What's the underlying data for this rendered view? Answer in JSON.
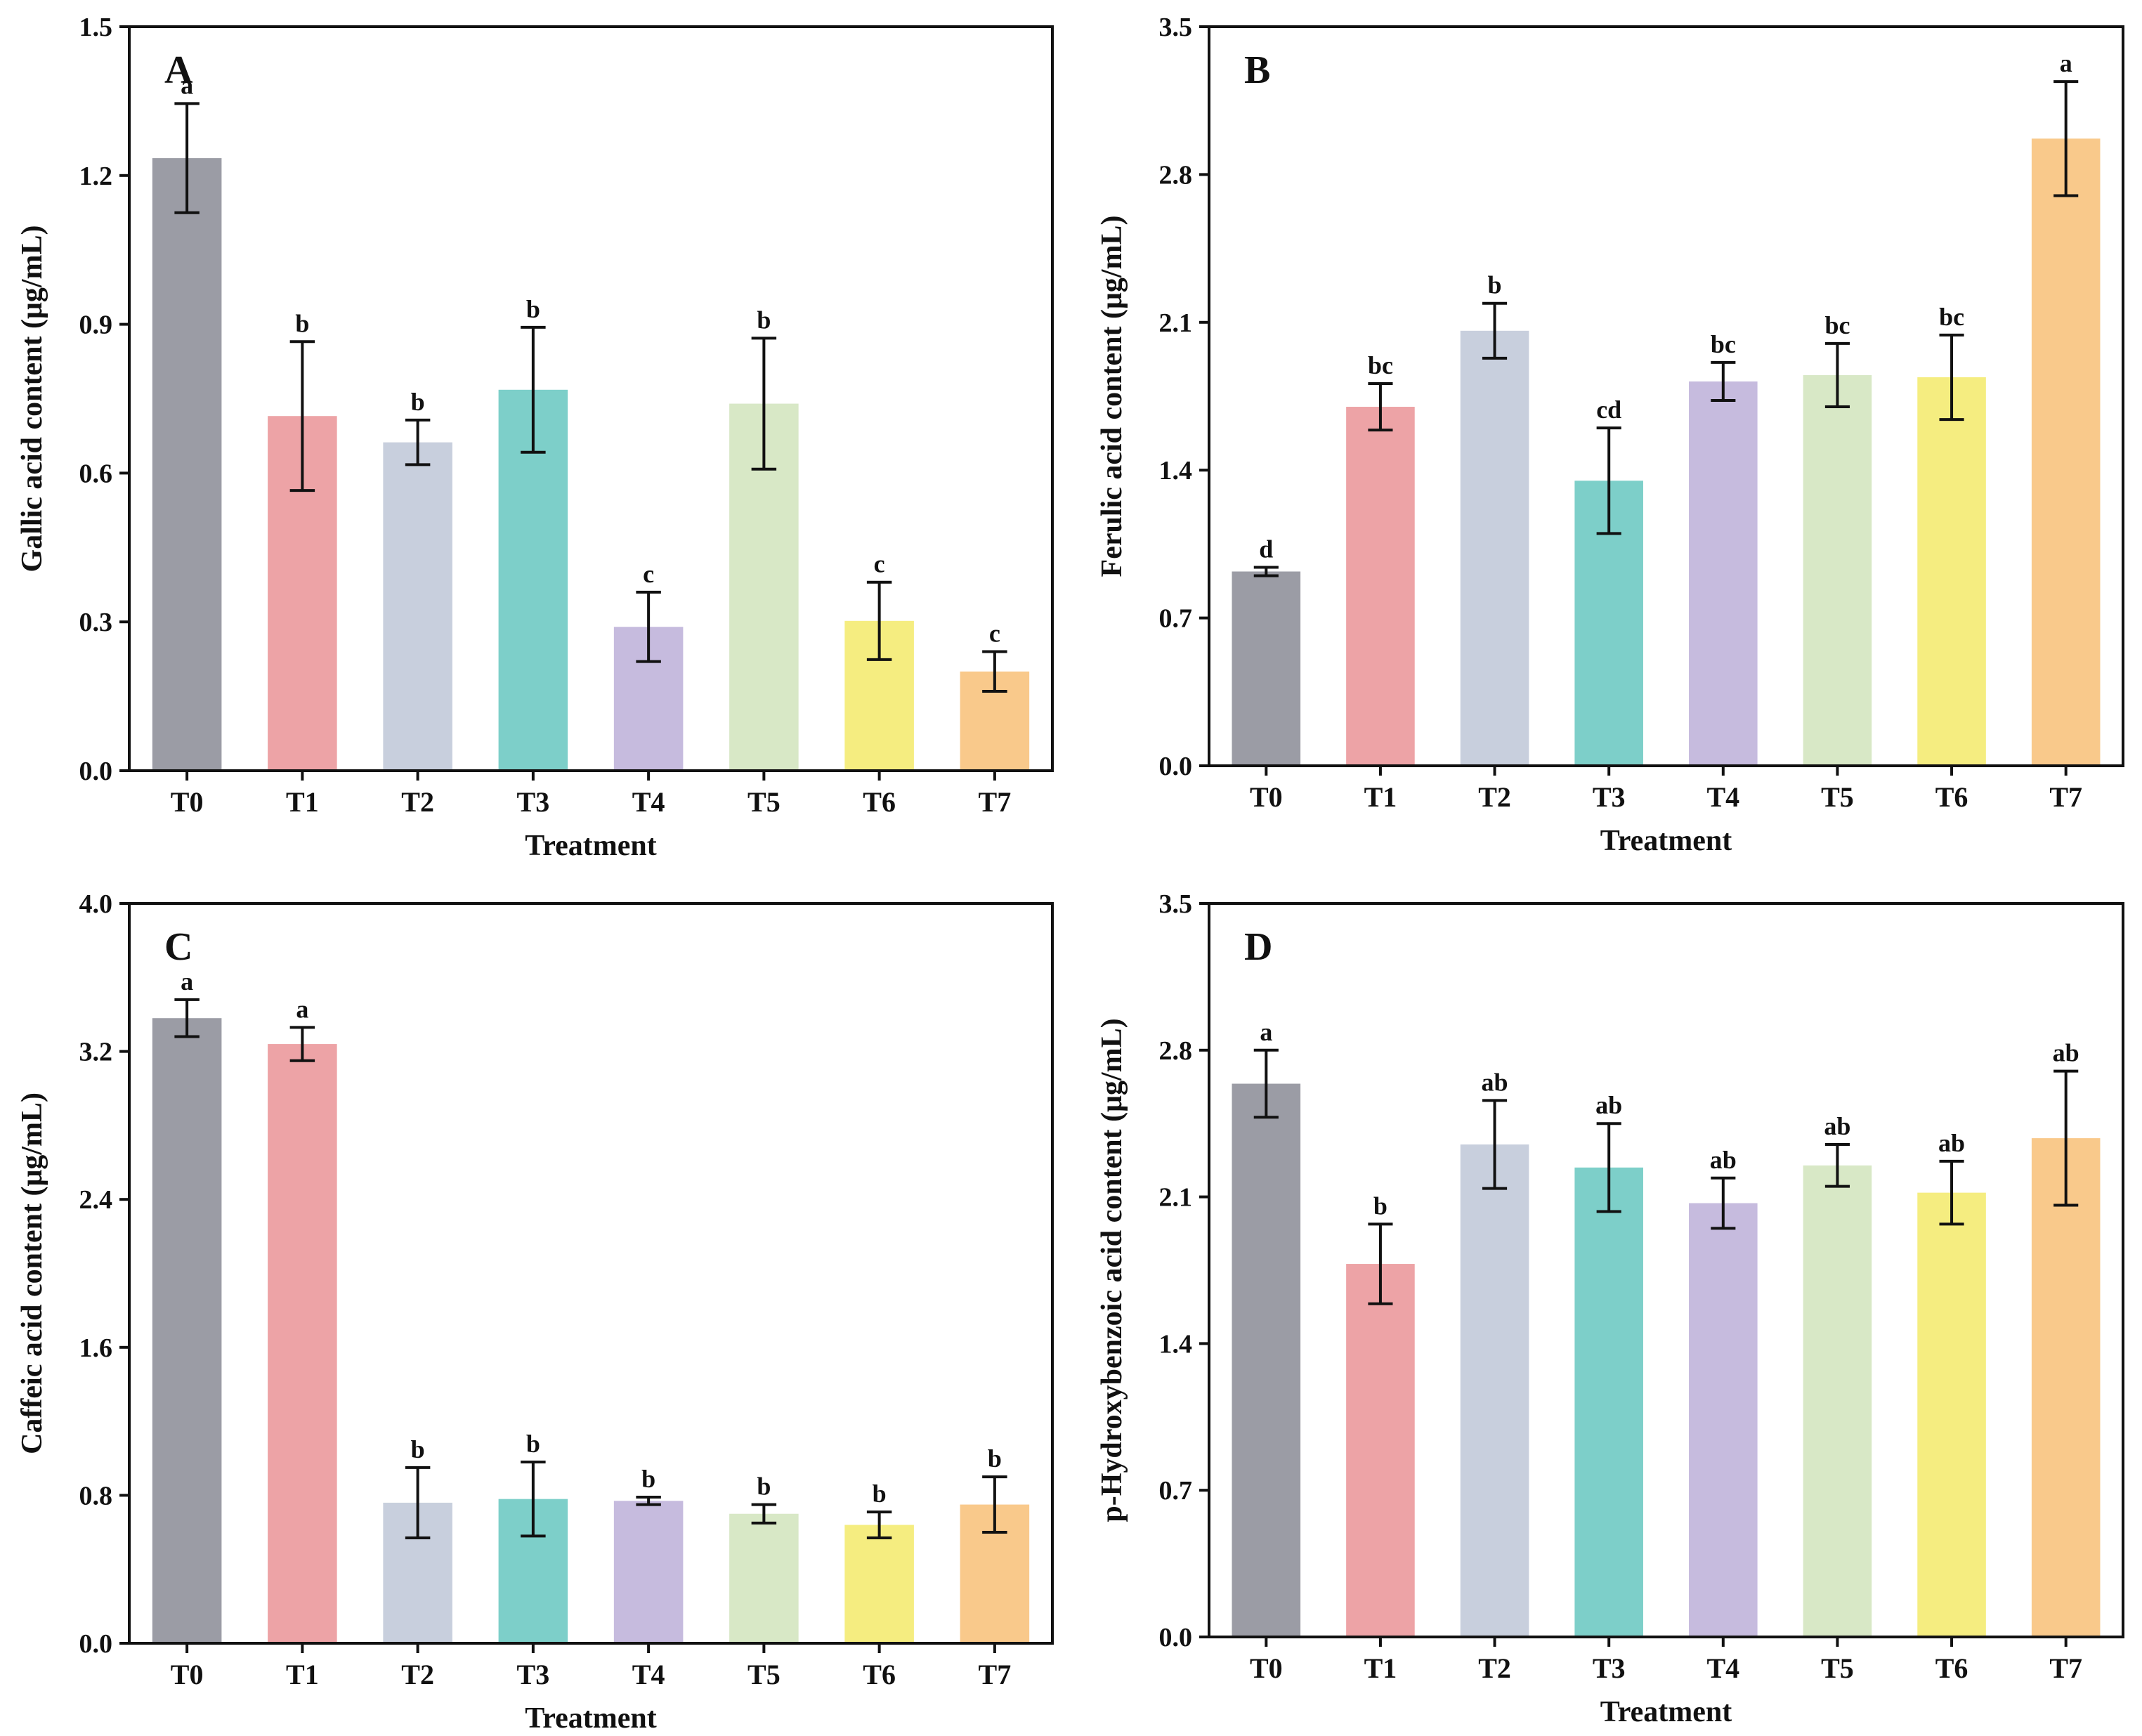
{
  "chart_data": [
    {
      "type": "bar",
      "panel": "A",
      "xlabel": "Treatment",
      "ylabel": "Gallic acid content (μg/mL)",
      "categories": [
        "T0",
        "T1",
        "T2",
        "T3",
        "T4",
        "T5",
        "T6",
        "T7"
      ],
      "values": [
        1.235,
        0.715,
        0.662,
        0.768,
        0.29,
        0.74,
        0.302,
        0.2
      ],
      "errors": [
        0.11,
        0.15,
        0.045,
        0.126,
        0.07,
        0.132,
        0.078,
        0.04
      ],
      "significance": [
        "a",
        "b",
        "b",
        "b",
        "c",
        "b",
        "c",
        "c"
      ],
      "ylim": [
        0,
        1.5
      ],
      "yticks": [
        0.0,
        0.3,
        0.6,
        0.9,
        1.2,
        1.5
      ],
      "ytick_labels": [
        "0.0",
        "0.3",
        "0.6",
        "0.9",
        "1.2",
        "1.5"
      ]
    },
    {
      "type": "bar",
      "panel": "B",
      "xlabel": "Treatment",
      "ylabel": "Ferulic acid content (μg/mL)",
      "categories": [
        "T0",
        "T1",
        "T2",
        "T3",
        "T4",
        "T5",
        "T6",
        "T7"
      ],
      "values": [
        0.92,
        1.7,
        2.06,
        1.35,
        1.82,
        1.85,
        1.84,
        2.97
      ],
      "errors": [
        0.02,
        0.11,
        0.13,
        0.25,
        0.09,
        0.15,
        0.2,
        0.27
      ],
      "significance": [
        "d",
        "bc",
        "b",
        "cd",
        "bc",
        "bc",
        "bc",
        "a"
      ],
      "ylim": [
        0,
        3.5
      ],
      "yticks": [
        0.0,
        0.7,
        1.4,
        2.1,
        2.8,
        3.5
      ],
      "ytick_labels": [
        "0.0",
        "0.7",
        "1.4",
        "2.1",
        "2.8",
        "3.5"
      ]
    },
    {
      "type": "bar",
      "panel": "C",
      "xlabel": "Treatment",
      "ylabel": "Caffeic acid content (μg/mL)",
      "categories": [
        "T0",
        "T1",
        "T2",
        "T3",
        "T4",
        "T5",
        "T6",
        "T7"
      ],
      "values": [
        3.38,
        3.24,
        0.76,
        0.78,
        0.77,
        0.7,
        0.64,
        0.75
      ],
      "errors": [
        0.1,
        0.09,
        0.19,
        0.2,
        0.02,
        0.05,
        0.07,
        0.15
      ],
      "significance": [
        "a",
        "a",
        "b",
        "b",
        "b",
        "b",
        "b",
        "b"
      ],
      "ylim": [
        0,
        4.0
      ],
      "yticks": [
        0.0,
        0.8,
        1.6,
        2.4,
        3.2,
        4.0
      ],
      "ytick_labels": [
        "0.0",
        "0.8",
        "1.6",
        "2.4",
        "3.2",
        "4.0"
      ]
    },
    {
      "type": "bar",
      "panel": "D",
      "xlabel": "Treatment",
      "ylabel": "p-Hydroxybenzoic acid content (μg/mL)",
      "categories": [
        "T0",
        "T1",
        "T2",
        "T3",
        "T4",
        "T5",
        "T6",
        "T7"
      ],
      "values": [
        2.64,
        1.78,
        2.35,
        2.24,
        2.07,
        2.25,
        2.12,
        2.38
      ],
      "errors": [
        0.16,
        0.19,
        0.21,
        0.21,
        0.12,
        0.1,
        0.15,
        0.32
      ],
      "significance": [
        "a",
        "b",
        "ab",
        "ab",
        "ab",
        "ab",
        "ab",
        "ab"
      ],
      "ylim": [
        0,
        3.5
      ],
      "yticks": [
        0.0,
        0.7,
        1.4,
        2.1,
        2.8,
        3.5
      ],
      "ytick_labels": [
        "0.0",
        "0.7",
        "1.4",
        "2.1",
        "2.8",
        "3.5"
      ]
    }
  ],
  "colors": {
    "T0": "#9b9ca5",
    "T1": "#eda3a6",
    "T2": "#c8cfdd",
    "T3": "#7dcfc9",
    "T4": "#c6bbde",
    "T5": "#d8e8c6",
    "T6": "#f5ed80",
    "T7": "#f9c98b",
    "axis": "#111111"
  }
}
